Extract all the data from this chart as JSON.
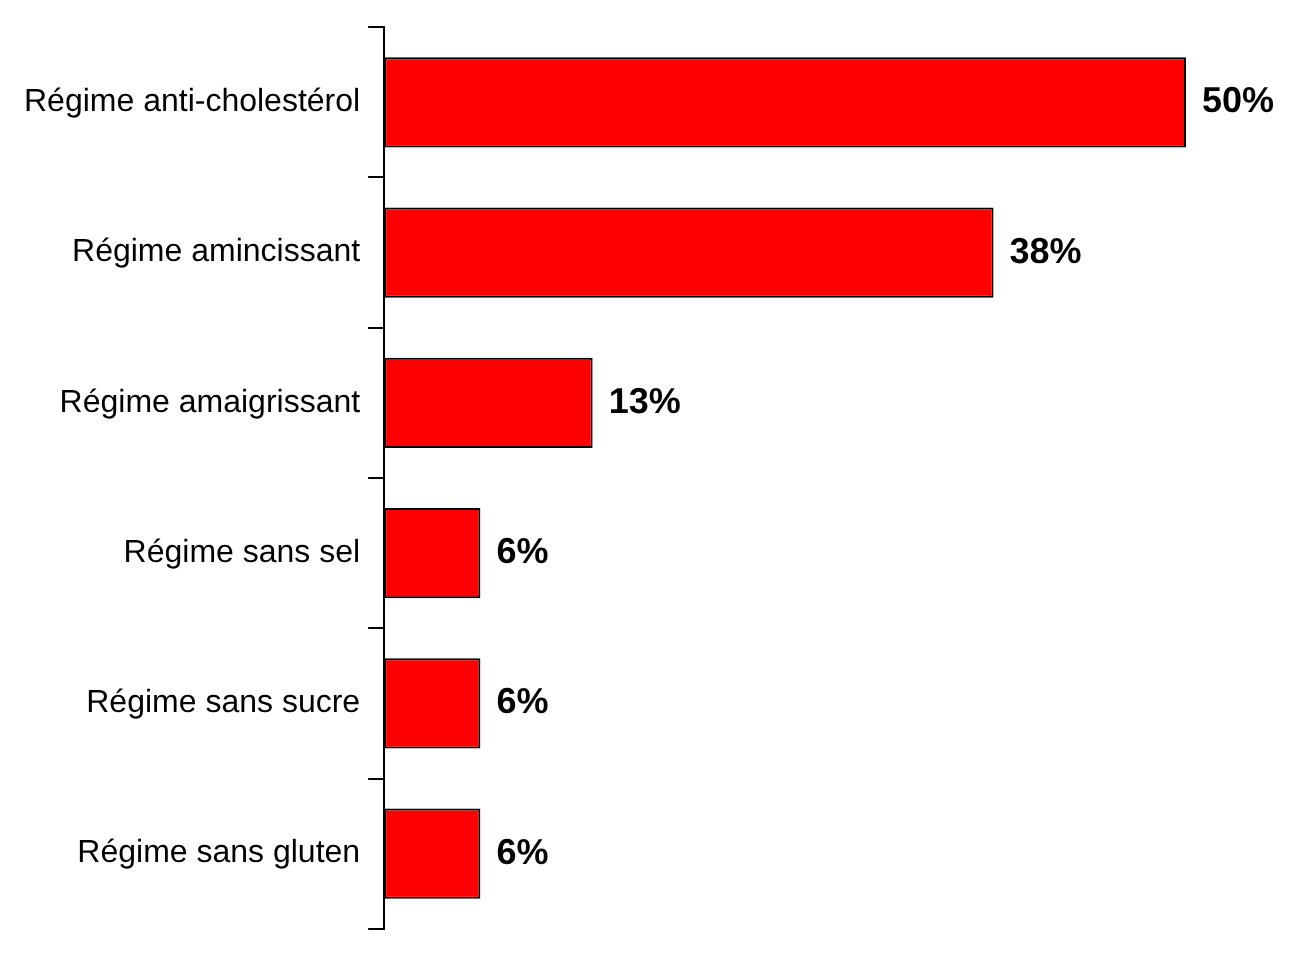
{
  "chart_data": {
    "type": "bar",
    "orientation": "horizontal",
    "categories": [
      "Régime anti-cholestérol",
      "Régime amincissant",
      "Régime amaigrissant",
      "Régime sans sel",
      "Régime sans sucre",
      "Régime sans gluten"
    ],
    "values": [
      50,
      38,
      13,
      6,
      6,
      6
    ],
    "value_labels": [
      "50%",
      "38%",
      "13%",
      "6%",
      "6%",
      "6%"
    ],
    "color": "#ff0000",
    "tick_labels": "y"
  }
}
